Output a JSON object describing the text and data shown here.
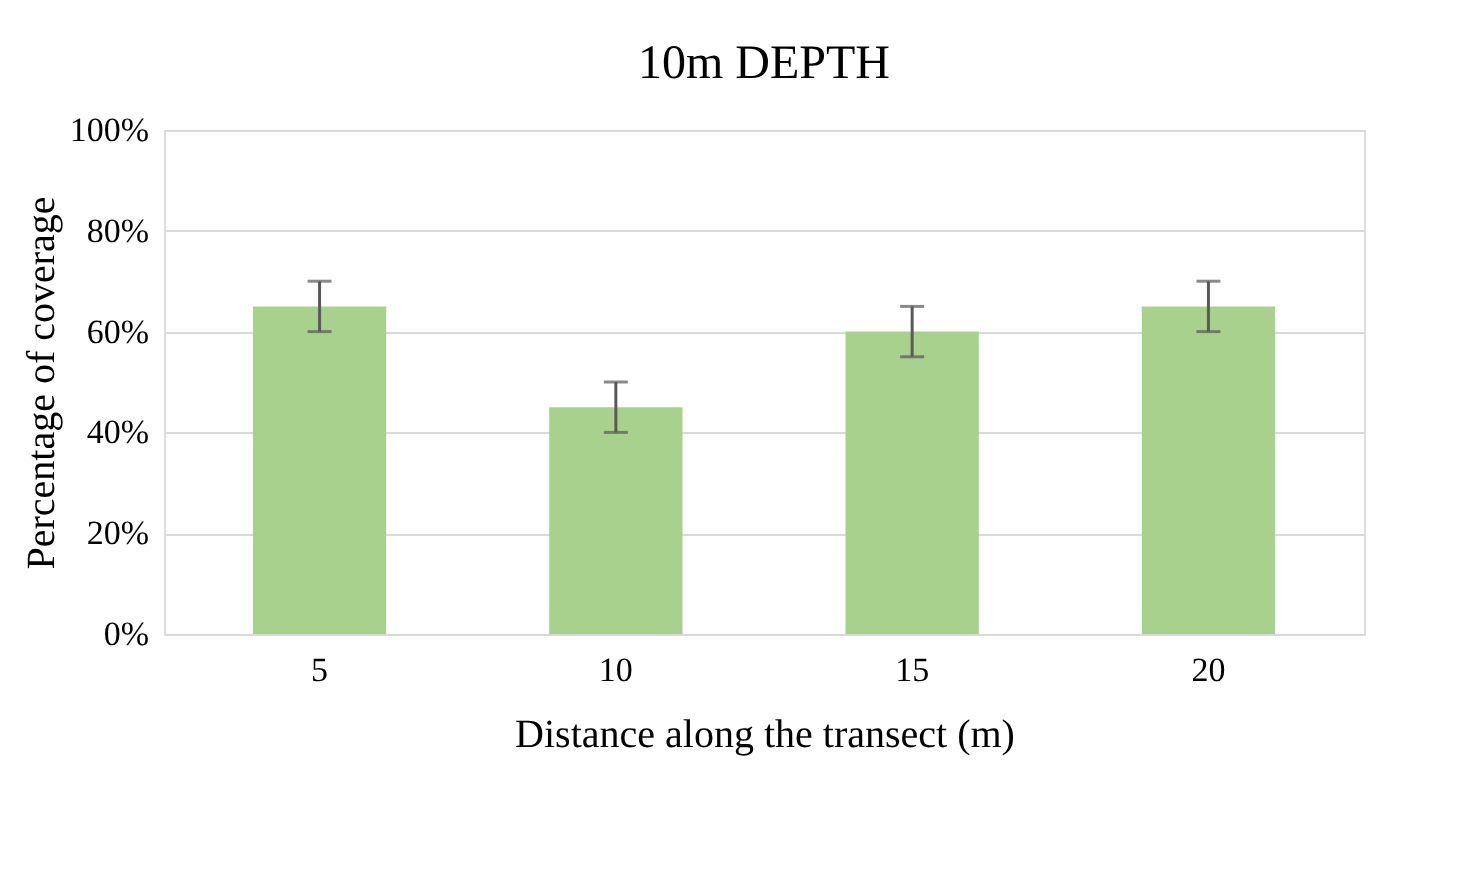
{
  "chart_data": {
    "type": "bar",
    "title": "10m DEPTH",
    "xlabel": "Distance along the transect (m)",
    "ylabel": "Percentage of coverage",
    "categories": [
      "5",
      "10",
      "15",
      "20"
    ],
    "values": [
      65,
      45,
      60,
      65
    ],
    "errors": [
      5,
      5,
      5,
      5
    ],
    "color": "#a9d18e",
    "ylim": [
      0,
      100
    ],
    "yticks": [
      {
        "value": 0,
        "label": "0%"
      },
      {
        "value": 20,
        "label": "20%"
      },
      {
        "value": 40,
        "label": "40%"
      },
      {
        "value": 60,
        "label": "60%"
      },
      {
        "value": 80,
        "label": "80%"
      },
      {
        "value": 100,
        "label": "100%"
      }
    ],
    "grid": "y"
  }
}
